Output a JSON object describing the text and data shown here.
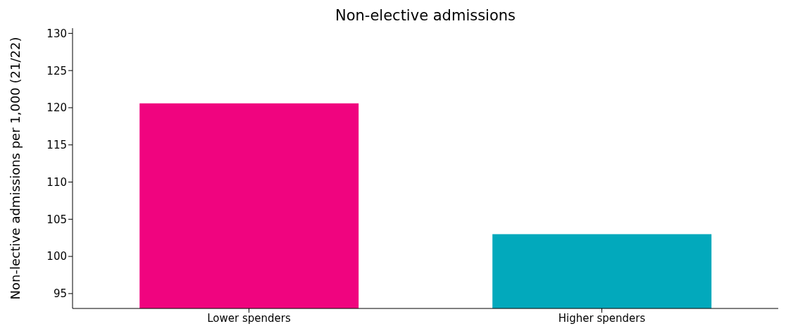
{
  "chart_data": {
    "type": "bar",
    "title": "Non-elective admissions",
    "ylabel": "Non-lective admissions per 1,000 (21/22)",
    "categories": [
      "Lower spenders",
      "Higher spenders"
    ],
    "values": [
      120.6,
      103.0
    ],
    "colors": [
      "#f0047f",
      "#02a9bc"
    ],
    "ylim": [
      93,
      130.7
    ],
    "yticks": [
      95,
      100,
      105,
      110,
      115,
      120,
      125,
      130
    ],
    "grid": false,
    "legend": false
  }
}
